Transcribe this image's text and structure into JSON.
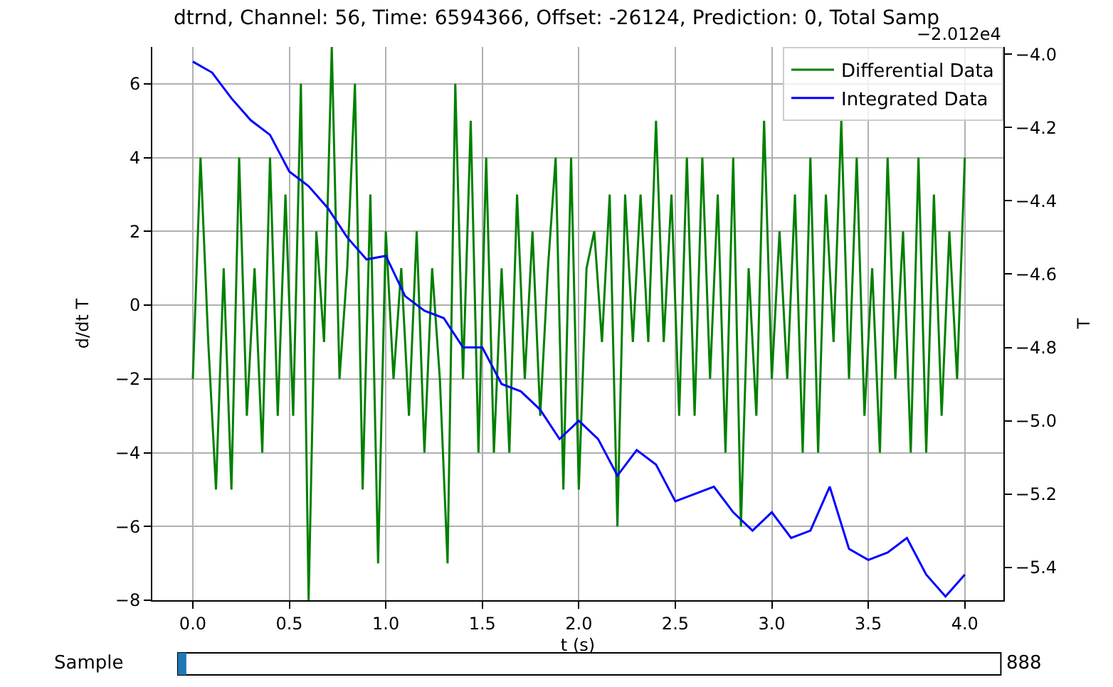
{
  "chart_data": {
    "type": "line",
    "title": "dtrnd, Channel: 56, Time: 6594366, Offset: -26124, Prediction: 0, Total Samp",
    "xlabel": "t (s)",
    "ylabel": "d/dt T",
    "y2label": "T",
    "x": [
      0.0,
      0.04,
      0.08,
      0.12,
      0.16,
      0.2,
      0.24,
      0.28,
      0.32,
      0.36,
      0.4,
      0.44,
      0.48,
      0.52,
      0.56,
      0.6,
      0.64,
      0.68,
      0.72,
      0.76,
      0.8,
      0.84,
      0.88,
      0.92,
      0.96,
      1.0,
      1.04,
      1.08,
      1.12,
      1.16,
      1.2,
      1.24,
      1.28,
      1.32,
      1.36,
      1.4,
      1.44,
      1.48,
      1.52,
      1.56,
      1.6,
      1.64,
      1.68,
      1.72,
      1.76,
      1.8,
      1.84,
      1.88,
      1.92,
      1.96,
      2.0,
      2.04,
      2.08,
      2.12,
      2.16,
      2.2,
      2.24,
      2.28,
      2.32,
      2.36,
      2.4,
      2.44,
      2.48,
      2.52,
      2.56,
      2.6,
      2.64,
      2.68,
      2.72,
      2.76,
      2.8,
      2.84,
      2.88,
      2.92,
      2.96,
      3.0,
      3.04,
      3.08,
      3.12,
      3.16,
      3.2,
      3.24,
      3.28,
      3.32,
      3.36,
      3.4,
      3.44,
      3.48,
      3.52,
      3.56,
      3.6,
      3.64,
      3.68,
      3.72,
      3.76,
      3.8,
      3.84,
      3.88,
      3.92,
      3.96,
      4.0
    ],
    "series": [
      {
        "name": "Differential Data",
        "color": "#008000",
        "values": [
          -2,
          4,
          -1,
          -5,
          1,
          -5,
          4,
          -3,
          1,
          -4,
          4,
          -3,
          3,
          -3,
          6,
          -8,
          2,
          -1,
          7,
          -2,
          1,
          6,
          -5,
          3,
          -7,
          2,
          -2,
          1,
          -3,
          2,
          -4,
          1,
          -2,
          -7,
          6,
          -2,
          5,
          -4,
          4,
          -4,
          1,
          -4,
          3,
          -2,
          2,
          -3,
          1,
          4,
          -5,
          4,
          -5,
          1,
          2,
          -1,
          3,
          -6,
          3,
          -1,
          3,
          -1,
          5,
          -1,
          3,
          -3,
          4,
          -3,
          4,
          -2,
          3,
          -4,
          4,
          -6,
          1,
          -3,
          5,
          -2,
          2,
          -2,
          3,
          -4,
          4,
          -4,
          3,
          -1,
          5,
          -2,
          4,
          -3,
          1,
          -4,
          4,
          -2,
          2,
          -4,
          4,
          -4,
          3,
          -3,
          2,
          -2,
          4
        ]
      },
      {
        "name": "Integrated Data",
        "color": "#0000ff",
        "axis": "y2",
        "x": [
          0.0,
          0.1,
          0.2,
          0.3,
          0.4,
          0.5,
          0.6,
          0.7,
          0.8,
          0.9,
          1.0,
          1.1,
          1.2,
          1.3,
          1.4,
          1.5,
          1.6,
          1.7,
          1.8,
          1.9,
          2.0,
          2.1,
          2.2,
          2.3,
          2.4,
          2.5,
          2.6,
          2.7,
          2.8,
          2.9,
          3.0,
          3.1,
          3.2,
          3.3,
          3.4,
          3.5,
          3.6,
          3.7,
          3.8,
          3.9,
          4.0
        ],
        "values": [
          -4.02,
          -4.05,
          -4.12,
          -4.18,
          -4.22,
          -4.32,
          -4.36,
          -4.42,
          -4.5,
          -4.56,
          -4.55,
          -4.66,
          -4.7,
          -4.72,
          -4.8,
          -4.8,
          -4.9,
          -4.92,
          -4.97,
          -5.05,
          -5.0,
          -5.05,
          -5.15,
          -5.08,
          -5.12,
          -5.22,
          -5.2,
          -5.18,
          -5.25,
          -5.3,
          -5.25,
          -5.32,
          -5.3,
          -5.18,
          -5.35,
          -5.38,
          -5.36,
          -5.32,
          -5.42,
          -5.48,
          -5.42
        ]
      }
    ],
    "xlim": [
      -0.21,
      4.2
    ],
    "xticks": [
      {
        "value": 0,
        "label": "0.0"
      },
      {
        "value": 0.5,
        "label": "0.5"
      },
      {
        "value": 1,
        "label": "1.0"
      },
      {
        "value": 1.5,
        "label": "1.5"
      },
      {
        "value": 2,
        "label": "2.0"
      },
      {
        "value": 2.5,
        "label": "2.5"
      },
      {
        "value": 3,
        "label": "3.0"
      },
      {
        "value": 3.5,
        "label": "3.5"
      },
      {
        "value": 4,
        "label": "4.0"
      }
    ],
    "ylim": [
      -8,
      7
    ],
    "yticks": [
      {
        "value": -8,
        "label": "−8"
      },
      {
        "value": -6,
        "label": "−6"
      },
      {
        "value": -4,
        "label": "−4"
      },
      {
        "value": -2,
        "label": "−2"
      },
      0,
      2,
      4,
      6
    ],
    "y2lim": [
      -5.49,
      -3.98
    ],
    "y2ticks": [
      {
        "value": -4.0,
        "label": "−4.0"
      },
      {
        "value": -4.2,
        "label": "−4.2"
      },
      {
        "value": -4.4,
        "label": "−4.4"
      },
      {
        "value": -4.6,
        "label": "−4.6"
      },
      {
        "value": -4.8,
        "label": "−4.8"
      },
      {
        "value": -5.0,
        "label": "−5.0"
      },
      {
        "value": -5.2,
        "label": "−5.2"
      },
      {
        "value": -5.4,
        "label": "−5.4"
      }
    ],
    "annotations": [
      "−2.012e4",
      "Sample",
      "888"
    ],
    "grid": true,
    "legend": "top right",
    "marker": "none",
    "line_style": "solid"
  }
}
